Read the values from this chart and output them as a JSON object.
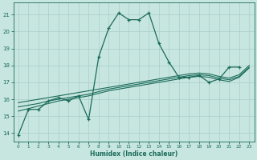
{
  "title": "",
  "xlabel": "Humidex (Indice chaleur)",
  "xlim": [
    -0.5,
    23.5
  ],
  "ylim": [
    13.5,
    21.7
  ],
  "yticks": [
    14,
    15,
    16,
    17,
    18,
    19,
    20,
    21
  ],
  "xticks": [
    0,
    1,
    2,
    3,
    4,
    5,
    6,
    7,
    8,
    9,
    10,
    11,
    12,
    13,
    14,
    15,
    16,
    17,
    18,
    19,
    20,
    21,
    22,
    23
  ],
  "background_color": "#c8e6e0",
  "grid_color": "#a8cfc8",
  "line_color": "#1a6b5a",
  "curve1_x": [
    0,
    1,
    2,
    3,
    4,
    5,
    6,
    7,
    8,
    9,
    10,
    11,
    12,
    13,
    14,
    15,
    16,
    17,
    18,
    19,
    20,
    21,
    22
  ],
  "curve1_y": [
    13.9,
    15.4,
    15.4,
    15.9,
    16.1,
    15.9,
    16.2,
    14.8,
    18.5,
    20.2,
    21.1,
    20.7,
    20.7,
    21.1,
    19.3,
    18.2,
    17.3,
    17.3,
    17.4,
    17.0,
    17.2,
    17.9,
    17.9
  ],
  "curve2_x": [
    0,
    1,
    2,
    3,
    4,
    5,
    6,
    7,
    8,
    9,
    10,
    11,
    12,
    13,
    14,
    15,
    16,
    17,
    18,
    19,
    20,
    21,
    22,
    23
  ],
  "curve2_y": [
    15.3,
    15.45,
    15.6,
    15.75,
    15.9,
    16.0,
    16.1,
    16.2,
    16.35,
    16.5,
    16.6,
    16.7,
    16.8,
    16.9,
    17.0,
    17.1,
    17.2,
    17.3,
    17.35,
    17.3,
    17.15,
    17.05,
    17.3,
    17.85
  ],
  "curve3_x": [
    0,
    1,
    2,
    3,
    4,
    5,
    6,
    7,
    8,
    9,
    10,
    11,
    12,
    13,
    14,
    15,
    16,
    17,
    18,
    19,
    20,
    21,
    22,
    23
  ],
  "curve3_y": [
    15.55,
    15.65,
    15.75,
    15.9,
    16.0,
    16.1,
    16.2,
    16.3,
    16.45,
    16.6,
    16.7,
    16.8,
    16.9,
    17.0,
    17.1,
    17.2,
    17.3,
    17.4,
    17.45,
    17.4,
    17.25,
    17.15,
    17.35,
    17.9
  ],
  "curve4_x": [
    0,
    1,
    2,
    3,
    4,
    5,
    6,
    7,
    8,
    9,
    10,
    11,
    12,
    13,
    14,
    15,
    16,
    17,
    18,
    19,
    20,
    21,
    22,
    23
  ],
  "curve4_y": [
    15.8,
    15.9,
    16.0,
    16.1,
    16.2,
    16.3,
    16.4,
    16.5,
    16.6,
    16.7,
    16.8,
    16.9,
    17.0,
    17.1,
    17.2,
    17.3,
    17.4,
    17.5,
    17.55,
    17.5,
    17.35,
    17.25,
    17.45,
    18.0
  ]
}
